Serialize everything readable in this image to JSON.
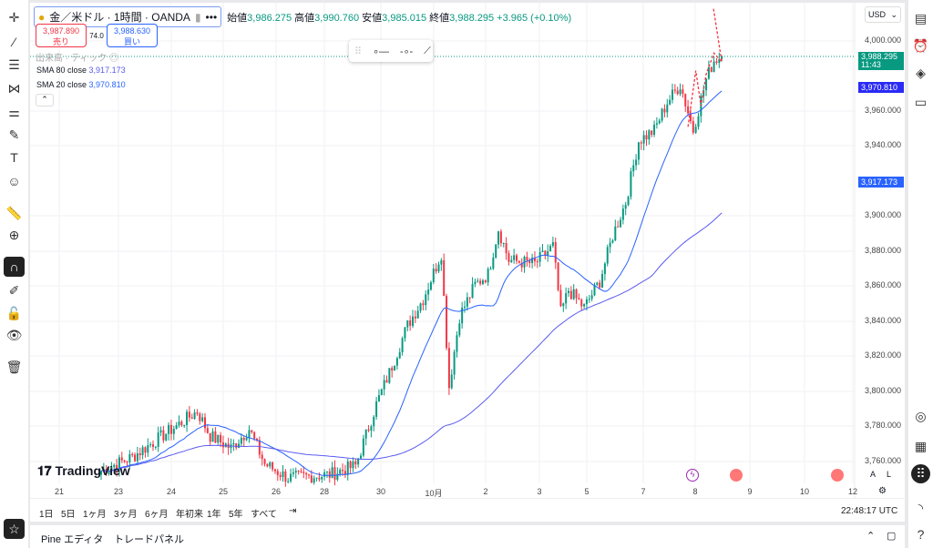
{
  "symbol": {
    "name": "金／米ドル · 1時間 · OANDA",
    "more": "•••"
  },
  "ohlc": {
    "open_label": "始値",
    "open": "3,986.275",
    "high_label": "高値",
    "high": "3,990.760",
    "low_label": "安値",
    "low": "3,985.015",
    "close_label": "終値",
    "close": "3,988.295",
    "change": "+3.965 (+0.10%)"
  },
  "trade": {
    "sell_price": "3,987.890",
    "sell_label": "売り",
    "spread": "74.0",
    "buy_price": "3,988.630",
    "buy_label": "買い"
  },
  "indicators": {
    "volume": "出来高 · ティック",
    "sma80_label": "SMA 80 close",
    "sma80": "3,917.173",
    "sma20_label": "SMA 20 close",
    "sma20": "3,970.810"
  },
  "currency": "USD",
  "price_ticks": [
    "4,000.000",
    "3,960.000",
    "3,940.000",
    "3,900.000",
    "3,880.000",
    "3,860.000",
    "3,840.000",
    "3,820.000",
    "3,800.000",
    "3,780.000",
    "3,760.000"
  ],
  "tags": {
    "last": "3,988.295",
    "countdown": "11:43",
    "sma20": "3,970.810",
    "sma80": "3,917.173"
  },
  "x_ticks": [
    "21",
    "23",
    "24",
    "25",
    "26",
    "28",
    "30",
    "10月",
    "2",
    "3",
    "5",
    "7",
    "8",
    "9",
    "10",
    "12"
  ],
  "ranges": [
    "1日",
    "5日",
    "1ヶ月",
    "3ヶ月",
    "6ヶ月",
    "年初来",
    "1年",
    "5年",
    "すべて"
  ],
  "time": "22:48:17 UTC",
  "bottom_tabs": [
    "Pine エディタ",
    "トレードパネル"
  ],
  "logo": "TradingView",
  "scale_buttons": [
    "A",
    "L"
  ],
  "colors": {
    "up": "#089981",
    "down": "#f23645",
    "sma20": "#2962ff",
    "sma80": "#5b5bf0"
  },
  "chart_data": {
    "type": "candlestick",
    "ylim": [
      3750,
      4010
    ],
    "close_keypoints": [
      [
        0,
        3752
      ],
      [
        12,
        3760
      ],
      [
        37,
        3786
      ],
      [
        42,
        3772
      ],
      [
        50,
        3765
      ],
      [
        57,
        3776
      ],
      [
        63,
        3756
      ],
      [
        72,
        3748
      ],
      [
        88,
        3750
      ],
      [
        98,
        3755
      ],
      [
        106,
        3790
      ],
      [
        111,
        3808
      ],
      [
        118,
        3835
      ],
      [
        124,
        3850
      ],
      [
        131,
        3876
      ],
      [
        134,
        3800
      ],
      [
        138,
        3840
      ],
      [
        144,
        3858
      ],
      [
        149,
        3864
      ],
      [
        153,
        3890
      ],
      [
        157,
        3872
      ],
      [
        167,
        3870
      ],
      [
        174,
        3880
      ],
      [
        177,
        3842
      ],
      [
        180,
        3855
      ],
      [
        186,
        3845
      ],
      [
        192,
        3860
      ],
      [
        197,
        3886
      ],
      [
        202,
        3905
      ],
      [
        207,
        3940
      ],
      [
        213,
        3946
      ],
      [
        218,
        3962
      ],
      [
        223,
        3972
      ],
      [
        228,
        3946
      ],
      [
        233,
        3975
      ],
      [
        236,
        3986
      ],
      [
        239,
        3988
      ]
    ]
  }
}
